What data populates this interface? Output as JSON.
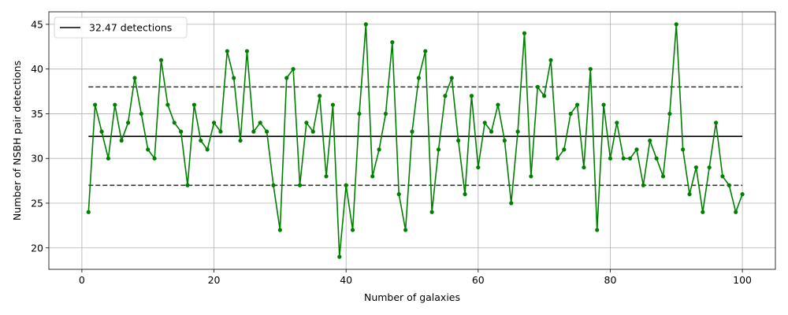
{
  "chart_data": {
    "type": "line",
    "title": "",
    "xlabel": "Number of galaxies",
    "ylabel": "Number of NSBH pair detections",
    "xlim": [
      -5,
      105
    ],
    "ylim": [
      17.6,
      46.4
    ],
    "xticks": [
      0,
      20,
      40,
      60,
      80,
      100
    ],
    "yticks": [
      20,
      25,
      30,
      35,
      40,
      45
    ],
    "grid": true,
    "legend_position": "upper-left",
    "series": [
      {
        "color": "#008000",
        "marker": "circle",
        "x": [
          1,
          2,
          3,
          4,
          5,
          6,
          7,
          8,
          9,
          10,
          11,
          12,
          13,
          14,
          15,
          16,
          17,
          18,
          19,
          20,
          21,
          22,
          23,
          24,
          25,
          26,
          27,
          28,
          29,
          30,
          31,
          32,
          33,
          34,
          35,
          36,
          37,
          38,
          39,
          40,
          41,
          42,
          43,
          44,
          45,
          46,
          47,
          48,
          49,
          50,
          51,
          52,
          53,
          54,
          55,
          56,
          57,
          58,
          59,
          60,
          61,
          62,
          63,
          64,
          65,
          66,
          67,
          68,
          69,
          70,
          71,
          72,
          73,
          74,
          75,
          76,
          77,
          78,
          79,
          80,
          81,
          82,
          83,
          84,
          85,
          86,
          87,
          88,
          89,
          90,
          91,
          92,
          93,
          94,
          95,
          96,
          97,
          98,
          99,
          100
        ],
        "values": [
          24,
          36,
          33,
          30,
          36,
          32,
          34,
          39,
          35,
          31,
          30,
          41,
          36,
          34,
          33,
          27,
          36,
          32,
          31,
          34,
          33,
          42,
          39,
          32,
          42,
          33,
          34,
          33,
          27,
          22,
          39,
          40,
          27,
          34,
          33,
          37,
          28,
          36,
          19,
          27,
          22,
          35,
          45,
          28,
          31,
          35,
          43,
          26,
          22,
          33,
          39,
          42,
          24,
          31,
          37,
          39,
          32,
          26,
          37,
          29,
          34,
          33,
          36,
          32,
          25,
          33,
          44,
          28,
          38,
          37,
          41,
          30,
          31,
          35,
          36,
          29,
          40,
          22,
          36,
          30,
          34,
          30,
          30,
          31,
          27,
          32,
          30,
          28,
          35,
          45,
          31,
          26,
          29,
          24,
          29,
          34,
          28,
          27,
          24,
          26
        ]
      }
    ],
    "reference_lines": [
      {
        "name": "32.47 detections",
        "y": 32.47,
        "color": "#000000",
        "style": "solid"
      },
      {
        "y": 38.0,
        "color": "#333333",
        "style": "dashed"
      },
      {
        "y": 27.0,
        "color": "#333333",
        "style": "dashed"
      }
    ]
  }
}
